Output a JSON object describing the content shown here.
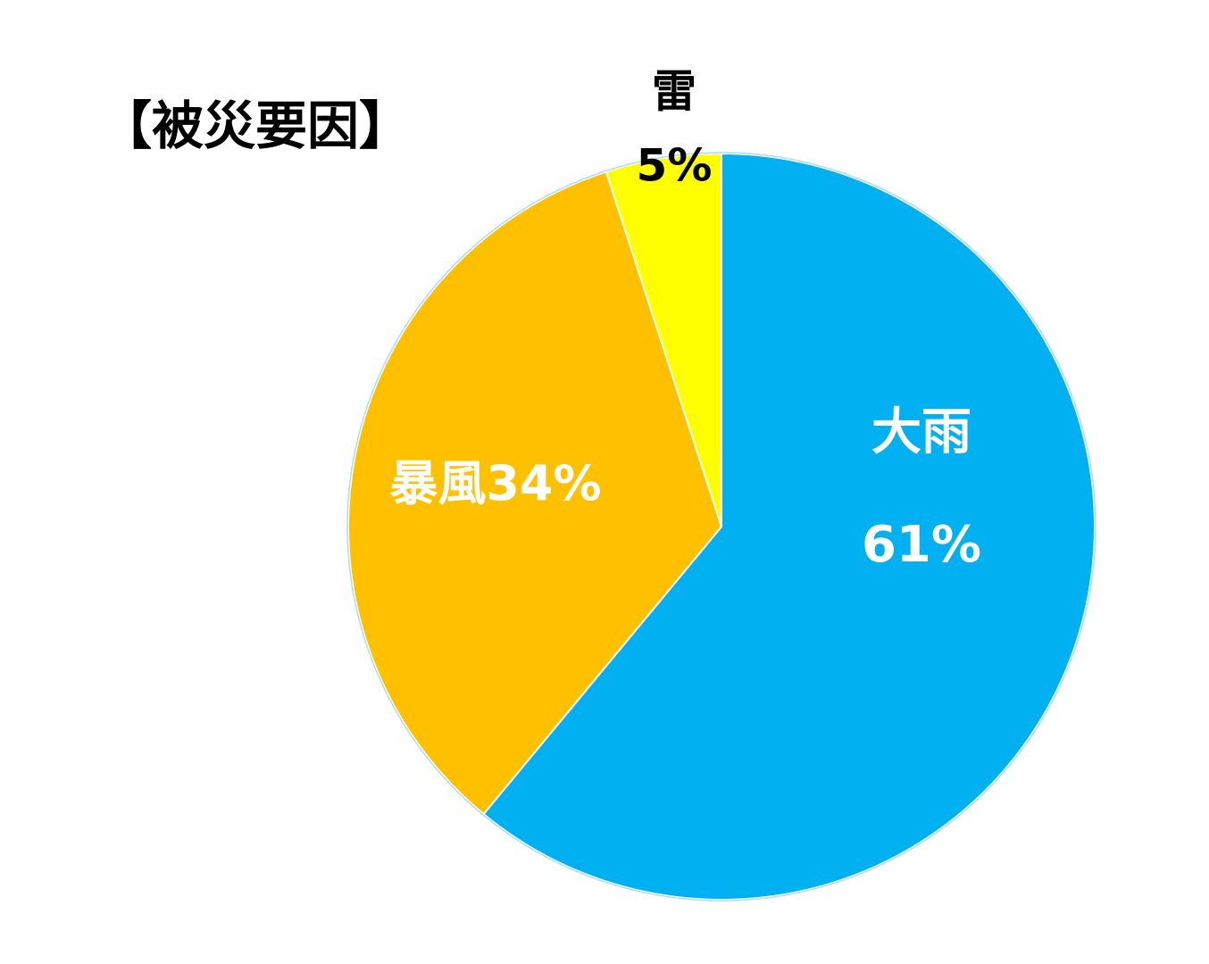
{
  "chart_data": {
    "type": "pie",
    "title": "【被災要因】",
    "categories": [
      "大雨",
      "暴風",
      "雷"
    ],
    "values": [
      61,
      34,
      5
    ],
    "value_labels": [
      "61%",
      "34%",
      "5%"
    ],
    "colors": [
      "#00b0f0",
      "#ffc000",
      "#ffff00"
    ]
  }
}
